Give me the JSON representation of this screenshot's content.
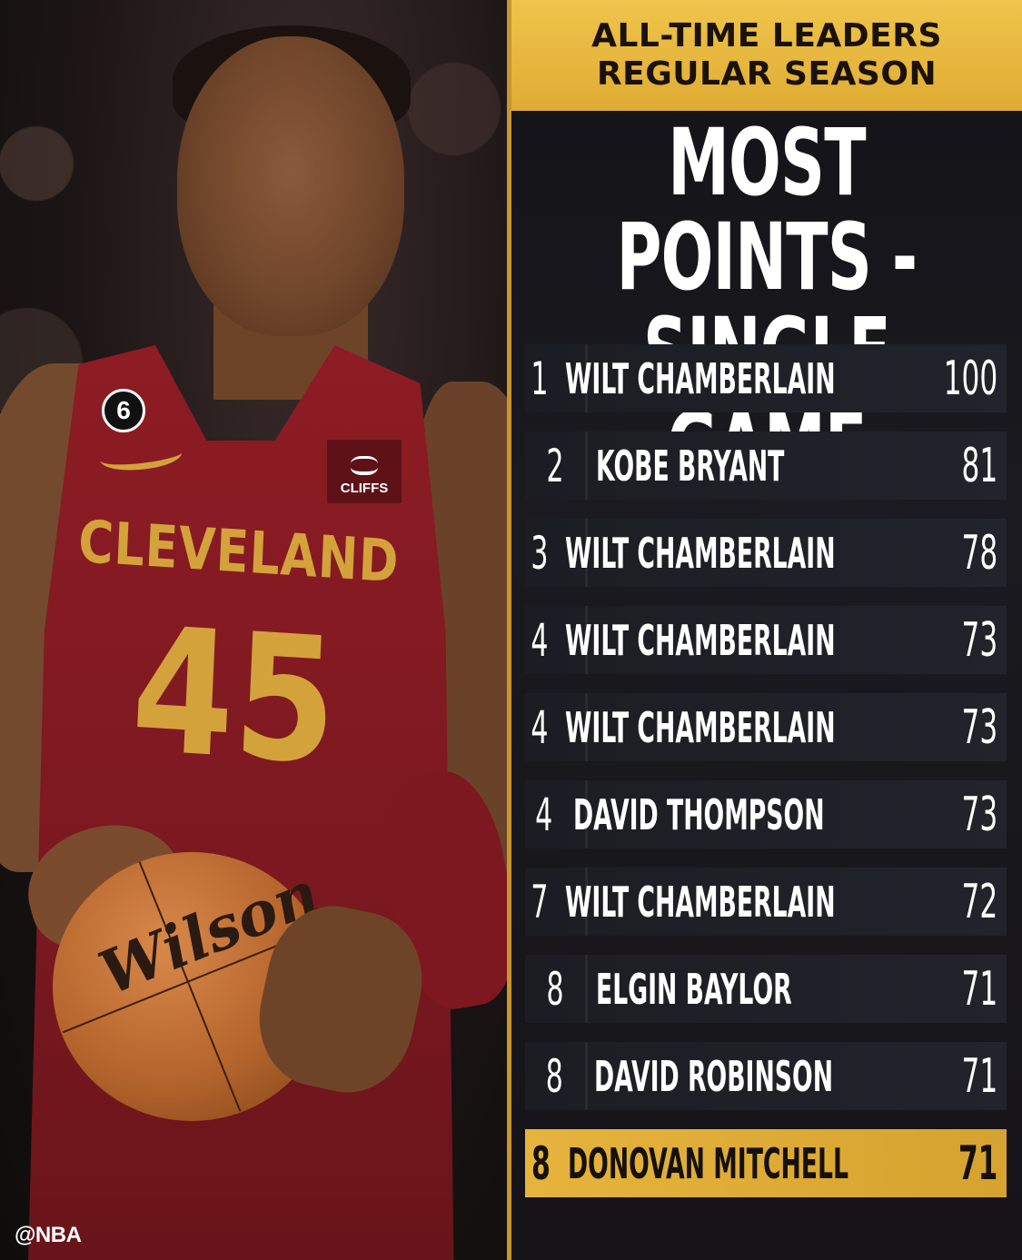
{
  "header": {
    "line1": "ALL-TIME LEADERS",
    "line2": "REGULAR SEASON"
  },
  "title": {
    "line1": "MOST POINTS -",
    "line2": "SINGLE GAME"
  },
  "photo": {
    "jersey_city": "CLEVELAND",
    "jersey_number": "45",
    "patch_number": "6",
    "sponsor": "CLIFFS",
    "ball_brand": "Wilson"
  },
  "credit": "@NBA",
  "leaders": [
    {
      "rank": "1",
      "name": "WILT CHAMBERLAIN",
      "points": "100"
    },
    {
      "rank": "2",
      "name": "KOBE BRYANT",
      "points": "81"
    },
    {
      "rank": "3",
      "name": "WILT CHAMBERLAIN",
      "points": "78"
    },
    {
      "rank": "4",
      "name": "WILT CHAMBERLAIN",
      "points": "73"
    },
    {
      "rank": "4",
      "name": "WILT CHAMBERLAIN",
      "points": "73"
    },
    {
      "rank": "4",
      "name": "DAVID THOMPSON",
      "points": "73"
    },
    {
      "rank": "7",
      "name": "WILT CHAMBERLAIN",
      "points": "72"
    },
    {
      "rank": "8",
      "name": "ELGIN BAYLOR",
      "points": "71"
    },
    {
      "rank": "8",
      "name": "DAVID ROBINSON",
      "points": "71"
    },
    {
      "rank": "8",
      "name": "DONOVAN MITCHELL",
      "points": "71"
    }
  ],
  "colors": {
    "gold": "#e6b43c",
    "panel": "#1a1a20",
    "jersey": "#8e1c24"
  }
}
